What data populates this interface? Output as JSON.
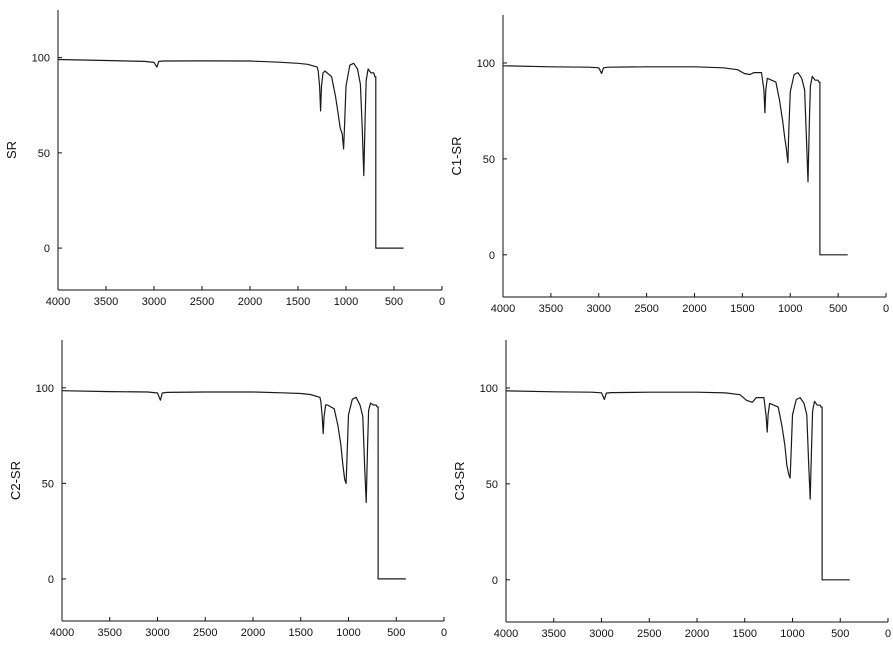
{
  "chart_data": [
    {
      "type": "line",
      "title": "",
      "xlabel": "",
      "ylabel": "SR",
      "xlim": [
        4000,
        0
      ],
      "ylim": [
        -22,
        125
      ],
      "x_ticks": [
        4000,
        3500,
        3000,
        2500,
        2000,
        1500,
        1000,
        500,
        0
      ],
      "y_ticks": [
        0,
        50,
        100
      ],
      "series": [
        {
          "x": [
            4000,
            3500,
            3100,
            3000,
            2970,
            2950,
            2900,
            2500,
            2000,
            1700,
            1500,
            1400,
            1300,
            1290,
            1275,
            1265,
            1255,
            1240,
            1220,
            1150,
            1110,
            1080,
            1060,
            1040,
            1025,
            1015,
            1000,
            960,
            920,
            880,
            850,
            830,
            815,
            800,
            790,
            770,
            740,
            710,
            700,
            690,
            690,
            400
          ],
          "y": [
            99,
            98.5,
            98,
            97.5,
            95,
            98,
            98.2,
            98.3,
            98.2,
            97.6,
            97,
            96.5,
            95,
            93,
            85,
            72,
            85,
            92,
            93,
            90,
            80,
            70,
            63,
            60,
            52,
            65,
            85,
            96,
            97,
            94,
            86,
            62,
            38,
            70,
            88,
            94,
            92,
            92,
            90,
            90,
            0,
            0
          ]
        }
      ]
    },
    {
      "type": "line",
      "title": "",
      "xlabel": "",
      "ylabel": "C1-SR",
      "xlim": [
        4000,
        0
      ],
      "ylim": [
        -22,
        125
      ],
      "x_ticks": [
        4000,
        3500,
        3000,
        2500,
        2000,
        1500,
        1000,
        500,
        0
      ],
      "y_ticks": [
        0,
        50,
        100
      ],
      "series": [
        {
          "x": [
            4000,
            3500,
            3100,
            3000,
            2970,
            2950,
            2900,
            2500,
            2000,
            1700,
            1550,
            1480,
            1420,
            1380,
            1300,
            1275,
            1265,
            1255,
            1240,
            1150,
            1110,
            1080,
            1060,
            1040,
            1025,
            1015,
            1000,
            960,
            920,
            880,
            850,
            830,
            815,
            800,
            790,
            770,
            740,
            710,
            700,
            690,
            690,
            400
          ],
          "y": [
            98.5,
            98,
            97.8,
            97.5,
            94.5,
            97.5,
            97.8,
            98,
            98,
            97.5,
            96.5,
            94.5,
            94,
            95,
            95,
            86,
            74,
            86,
            92,
            90,
            80,
            70,
            62,
            55,
            48,
            65,
            85,
            94,
            95,
            92,
            86,
            60,
            38,
            70,
            88,
            93,
            91,
            91,
            90,
            90,
            0,
            0
          ]
        }
      ]
    },
    {
      "type": "line",
      "title": "",
      "xlabel": "",
      "ylabel": "C2-SR",
      "xlim": [
        4000,
        0
      ],
      "ylim": [
        -22,
        125
      ],
      "x_ticks": [
        4000,
        3500,
        3000,
        2500,
        2000,
        1500,
        1000,
        500,
        0
      ],
      "y_ticks": [
        0,
        50,
        100
      ],
      "series": [
        {
          "x": [
            4000,
            3500,
            3100,
            3000,
            2970,
            2950,
            2900,
            2500,
            2000,
            1700,
            1500,
            1400,
            1300,
            1290,
            1275,
            1265,
            1255,
            1240,
            1220,
            1150,
            1110,
            1080,
            1060,
            1040,
            1025,
            1015,
            1000,
            960,
            920,
            880,
            850,
            830,
            815,
            800,
            790,
            770,
            740,
            710,
            700,
            690,
            690,
            400
          ],
          "y": [
            98.5,
            98,
            97.8,
            97.3,
            93.5,
            97.3,
            97.6,
            97.8,
            97.8,
            97.4,
            97,
            96.5,
            95,
            93,
            85,
            76,
            85,
            91,
            91,
            89,
            80,
            70,
            60,
            52,
            50,
            65,
            86,
            94,
            95,
            91,
            85,
            58,
            40,
            70,
            88,
            92,
            91,
            91,
            90,
            90,
            0,
            0
          ]
        }
      ]
    },
    {
      "type": "line",
      "title": "",
      "xlabel": "",
      "ylabel": "C3-SR",
      "xlim": [
        4000,
        0
      ],
      "ylim": [
        -22,
        125
      ],
      "x_ticks": [
        4000,
        3500,
        3000,
        2500,
        2000,
        1500,
        1000,
        500,
        0
      ],
      "y_ticks": [
        0,
        50,
        100
      ],
      "series": [
        {
          "x": [
            4000,
            3500,
            3100,
            3000,
            2970,
            2950,
            2900,
            2500,
            2000,
            1700,
            1550,
            1480,
            1420,
            1380,
            1300,
            1275,
            1265,
            1255,
            1240,
            1150,
            1110,
            1080,
            1060,
            1040,
            1025,
            1015,
            1000,
            960,
            920,
            880,
            850,
            830,
            815,
            800,
            790,
            770,
            740,
            710,
            700,
            690,
            690,
            400
          ],
          "y": [
            98.5,
            98,
            97.8,
            97.5,
            94,
            97.3,
            97.6,
            97.8,
            97.8,
            97.4,
            96.5,
            93.5,
            92.5,
            95,
            95,
            85,
            77,
            86,
            92,
            90,
            80,
            70,
            60,
            55,
            53,
            66,
            86,
            94,
            95,
            92,
            86,
            60,
            42,
            70,
            88,
            93,
            91,
            91,
            90,
            90,
            0,
            0
          ]
        }
      ]
    }
  ]
}
